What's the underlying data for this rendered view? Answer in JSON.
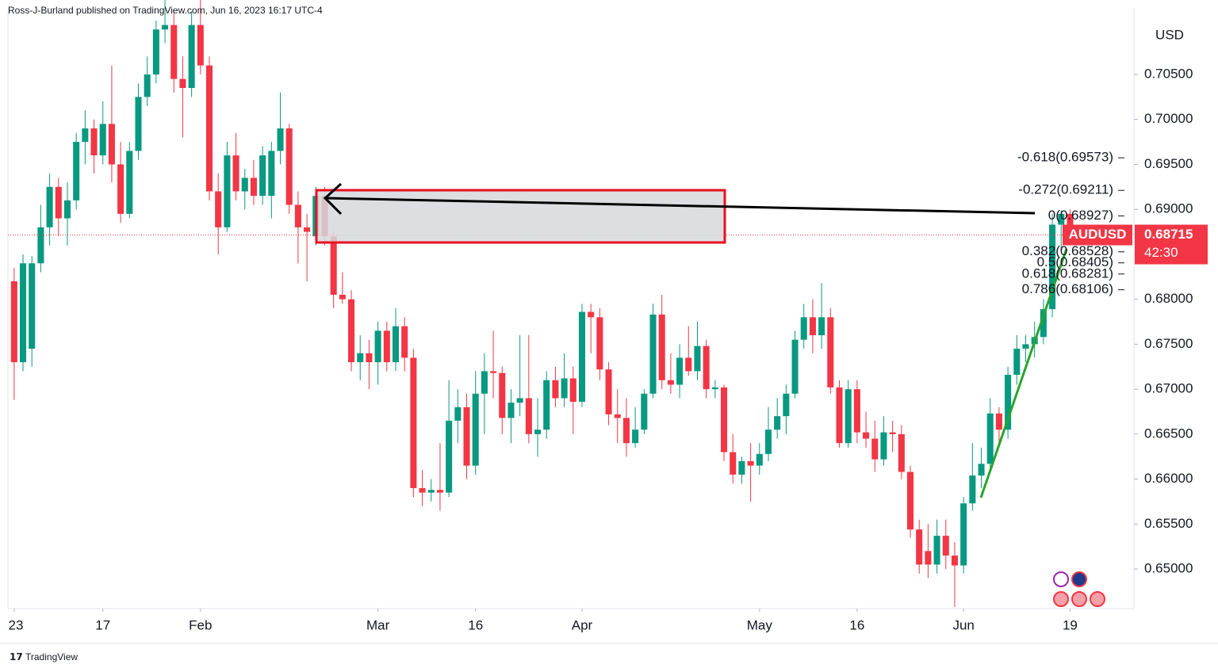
{
  "header": {
    "byline": "Ross-J-Burland published on TradingView.com, Jun 16, 2023 16:17 UTC-4"
  },
  "footer": {
    "logo": "TradingView"
  },
  "chart_data": {
    "type": "candlestick",
    "currency": "USD",
    "symbol": "AUDUSD",
    "last_price": {
      "value": 0.68715,
      "label": "0.68715"
    },
    "countdown": "42:30",
    "up_color": "#089981",
    "down_color": "#f23645",
    "ylim": [
      0.6456,
      0.7124
    ],
    "xlim": [
      -0.7,
      126.2
    ],
    "yticks": [
      {
        "value": 0.65,
        "label": "0.65000"
      },
      {
        "value": 0.655,
        "label": "0.65500"
      },
      {
        "value": 0.66,
        "label": "0.66000"
      },
      {
        "value": 0.665,
        "label": "0.66500"
      },
      {
        "value": 0.67,
        "label": "0.67000"
      },
      {
        "value": 0.675,
        "label": "0.67500"
      },
      {
        "value": 0.68,
        "label": "0.68000"
      },
      {
        "value": 0.685,
        "label": "0.68500"
      },
      {
        "value": 0.69,
        "label": "0.69000"
      },
      {
        "value": 0.695,
        "label": "0.69500"
      },
      {
        "value": 0.7,
        "label": "0.70000"
      },
      {
        "value": 0.705,
        "label": "0.70500"
      }
    ],
    "xticks": [
      {
        "value": 0,
        "label": "23"
      },
      {
        "value": 10,
        "label": "17"
      },
      {
        "value": 21,
        "label": "Feb"
      },
      {
        "value": 41,
        "label": "Mar"
      },
      {
        "value": 52,
        "label": "16"
      },
      {
        "value": 64,
        "label": "Apr"
      },
      {
        "value": 84,
        "label": "May"
      },
      {
        "value": 95,
        "label": "16"
      },
      {
        "value": 107,
        "label": "Jun"
      },
      {
        "value": 119,
        "label": "19"
      }
    ],
    "fib": [
      {
        "value": 0.69573,
        "label": "-0.618(0.69573)"
      },
      {
        "value": 0.69211,
        "label": "-0.272(0.69211)"
      },
      {
        "value": 0.68927,
        "label": "0(0.68927)"
      },
      {
        "value": 0.68528,
        "label": "0.382(0.68528)"
      },
      {
        "value": 0.68405,
        "label": "0.5(0.68405)"
      },
      {
        "value": 0.68281,
        "label": "0.618(0.68281)"
      },
      {
        "value": 0.68106,
        "label": "0.786(0.68106)"
      }
    ],
    "ohlc": [
      [
        0.682,
        0.6835,
        0.6688,
        0.673
      ],
      [
        0.673,
        0.685,
        0.672,
        0.684
      ],
      [
        0.6745,
        0.6848,
        0.6725,
        0.684
      ],
      [
        0.684,
        0.6905,
        0.683,
        0.688
      ],
      [
        0.688,
        0.694,
        0.686,
        0.6925
      ],
      [
        0.6925,
        0.6935,
        0.687,
        0.689
      ],
      [
        0.689,
        0.693,
        0.686,
        0.691
      ],
      [
        0.691,
        0.6985,
        0.69,
        0.6975
      ],
      [
        0.6975,
        0.701,
        0.695,
        0.699
      ],
      [
        0.699,
        0.7,
        0.694,
        0.696
      ],
      [
        0.696,
        0.702,
        0.695,
        0.6995
      ],
      [
        0.6995,
        0.706,
        0.693,
        0.695
      ],
      [
        0.695,
        0.6975,
        0.6885,
        0.6895
      ],
      [
        0.6895,
        0.6975,
        0.689,
        0.6965
      ],
      [
        0.6965,
        0.704,
        0.6955,
        0.7025
      ],
      [
        0.7025,
        0.707,
        0.7015,
        0.705
      ],
      [
        0.705,
        0.711,
        0.704,
        0.71
      ],
      [
        0.71,
        0.714,
        0.7085,
        0.7105
      ],
      [
        0.7105,
        0.712,
        0.703,
        0.7045
      ],
      [
        0.7045,
        0.707,
        0.698,
        0.7035
      ],
      [
        0.7035,
        0.712,
        0.7025,
        0.7105
      ],
      [
        0.7105,
        0.714,
        0.705,
        0.706
      ],
      [
        0.706,
        0.707,
        0.691,
        0.692
      ],
      [
        0.692,
        0.694,
        0.685,
        0.688
      ],
      [
        0.688,
        0.6975,
        0.6875,
        0.696
      ],
      [
        0.696,
        0.6985,
        0.691,
        0.692
      ],
      [
        0.692,
        0.6945,
        0.69,
        0.6935
      ],
      [
        0.6935,
        0.6955,
        0.6905,
        0.6915
      ],
      [
        0.6915,
        0.697,
        0.6905,
        0.696
      ],
      [
        0.6915,
        0.6975,
        0.689,
        0.6965
      ],
      [
        0.6965,
        0.703,
        0.695,
        0.699
      ],
      [
        0.699,
        0.6995,
        0.6895,
        0.6905
      ],
      [
        0.6905,
        0.692,
        0.684,
        0.688
      ],
      [
        0.688,
        0.6895,
        0.682,
        0.6875
      ],
      [
        0.687,
        0.6925,
        0.686,
        0.6915
      ],
      [
        0.6915,
        0.6925,
        0.686,
        0.687
      ],
      [
        0.687,
        0.6875,
        0.679,
        0.6805
      ],
      [
        0.6805,
        0.683,
        0.6795,
        0.68
      ],
      [
        0.68,
        0.681,
        0.672,
        0.673
      ],
      [
        0.673,
        0.676,
        0.671,
        0.674
      ],
      [
        0.674,
        0.6755,
        0.67,
        0.673
      ],
      [
        0.673,
        0.6775,
        0.6705,
        0.6765
      ],
      [
        0.6765,
        0.6775,
        0.672,
        0.673
      ],
      [
        0.673,
        0.679,
        0.672,
        0.677
      ],
      [
        0.677,
        0.678,
        0.672,
        0.6735
      ],
      [
        0.6735,
        0.6745,
        0.658,
        0.659
      ],
      [
        0.659,
        0.661,
        0.657,
        0.6585
      ],
      [
        0.6585,
        0.66,
        0.6575,
        0.6588
      ],
      [
        0.6588,
        0.664,
        0.6565,
        0.6585
      ],
      [
        0.6585,
        0.671,
        0.658,
        0.6665
      ],
      [
        0.6665,
        0.67,
        0.664,
        0.668
      ],
      [
        0.668,
        0.6695,
        0.66,
        0.6615
      ],
      [
        0.6615,
        0.672,
        0.6605,
        0.6695
      ],
      [
        0.6695,
        0.674,
        0.665,
        0.672
      ],
      [
        0.672,
        0.6765,
        0.669,
        0.6718
      ],
      [
        0.6718,
        0.6725,
        0.665,
        0.6668
      ],
      [
        0.6668,
        0.67,
        0.664,
        0.6685
      ],
      [
        0.6685,
        0.676,
        0.667,
        0.669
      ],
      [
        0.669,
        0.676,
        0.664,
        0.665
      ],
      [
        0.665,
        0.669,
        0.6625,
        0.6655
      ],
      [
        0.6655,
        0.672,
        0.6645,
        0.671
      ],
      [
        0.671,
        0.6725,
        0.668,
        0.669
      ],
      [
        0.669,
        0.674,
        0.668,
        0.6712
      ],
      [
        0.6712,
        0.6725,
        0.665,
        0.6686
      ],
      [
        0.6686,
        0.6795,
        0.668,
        0.6786
      ],
      [
        0.6786,
        0.6795,
        0.674,
        0.678
      ],
      [
        0.678,
        0.679,
        0.671,
        0.6722
      ],
      [
        0.6722,
        0.673,
        0.666,
        0.6672
      ],
      [
        0.6672,
        0.67,
        0.664,
        0.6668
      ],
      [
        0.6668,
        0.669,
        0.6625,
        0.664
      ],
      [
        0.664,
        0.668,
        0.6635,
        0.6655
      ],
      [
        0.6655,
        0.67,
        0.665,
        0.6695
      ],
      [
        0.6695,
        0.6795,
        0.669,
        0.6783
      ],
      [
        0.6783,
        0.6805,
        0.67,
        0.671
      ],
      [
        0.671,
        0.674,
        0.6695,
        0.6705
      ],
      [
        0.6705,
        0.675,
        0.669,
        0.6735
      ],
      [
        0.6735,
        0.677,
        0.6715,
        0.672
      ],
      [
        0.672,
        0.6775,
        0.671,
        0.6748
      ],
      [
        0.6748,
        0.6755,
        0.669,
        0.67
      ],
      [
        0.67,
        0.671,
        0.669,
        0.6702
      ],
      [
        0.6702,
        0.6705,
        0.662,
        0.663
      ],
      [
        0.663,
        0.665,
        0.6595,
        0.6605
      ],
      [
        0.6605,
        0.6625,
        0.6595,
        0.662
      ],
      [
        0.662,
        0.664,
        0.6575,
        0.6615
      ],
      [
        0.6615,
        0.664,
        0.6605,
        0.6628
      ],
      [
        0.6628,
        0.668,
        0.662,
        0.6655
      ],
      [
        0.6655,
        0.669,
        0.6645,
        0.667
      ],
      [
        0.667,
        0.6705,
        0.665,
        0.6695
      ],
      [
        0.6695,
        0.6765,
        0.669,
        0.6755
      ],
      [
        0.6755,
        0.6795,
        0.6745,
        0.678
      ],
      [
        0.678,
        0.68,
        0.674,
        0.676
      ],
      [
        0.676,
        0.6818,
        0.6745,
        0.678
      ],
      [
        0.678,
        0.679,
        0.6695,
        0.6702
      ],
      [
        0.6702,
        0.671,
        0.6635,
        0.664
      ],
      [
        0.664,
        0.671,
        0.6635,
        0.67
      ],
      [
        0.67,
        0.671,
        0.664,
        0.6652
      ],
      [
        0.6652,
        0.6675,
        0.6635,
        0.6645
      ],
      [
        0.6645,
        0.6665,
        0.6608,
        0.6622
      ],
      [
        0.6622,
        0.667,
        0.6615,
        0.6652
      ],
      [
        0.6652,
        0.6665,
        0.663,
        0.665
      ],
      [
        0.665,
        0.666,
        0.66,
        0.6608
      ],
      [
        0.6608,
        0.6615,
        0.6535,
        0.6544
      ],
      [
        0.6544,
        0.6555,
        0.6495,
        0.6505
      ],
      [
        0.652,
        0.655,
        0.649,
        0.6505
      ],
      [
        0.6505,
        0.6555,
        0.6495,
        0.6537
      ],
      [
        0.6537,
        0.6555,
        0.65,
        0.6515
      ],
      [
        0.6515,
        0.653,
        0.6458,
        0.6504
      ],
      [
        0.6504,
        0.658,
        0.6495,
        0.6573
      ],
      [
        0.6573,
        0.664,
        0.6565,
        0.6604
      ],
      [
        0.6604,
        0.6635,
        0.659,
        0.6617
      ],
      [
        0.6617,
        0.669,
        0.661,
        0.6673
      ],
      [
        0.6673,
        0.668,
        0.664,
        0.6655
      ],
      [
        0.6655,
        0.6725,
        0.6645,
        0.6716
      ],
      [
        0.6716,
        0.676,
        0.6705,
        0.6745
      ],
      [
        0.6745,
        0.676,
        0.673,
        0.675
      ],
      [
        0.675,
        0.6775,
        0.6735,
        0.6758
      ],
      [
        0.6758,
        0.68,
        0.675,
        0.6789
      ],
      [
        0.6789,
        0.6895,
        0.678,
        0.6883
      ],
      [
        0.6883,
        0.6899,
        0.6855,
        0.6895
      ],
      [
        0.6895,
        0.69,
        0.686,
        0.68715
      ]
    ]
  }
}
